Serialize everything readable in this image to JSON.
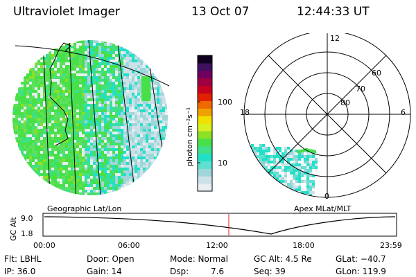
{
  "header": {
    "title": "Ultraviolet Imager",
    "date": "13 Oct 07",
    "time": "12:44:33 UT"
  },
  "colorbar": {
    "label": "photon cm⁻²s⁻¹",
    "ticks": [
      "100",
      "10"
    ],
    "colors": [
      "#e8eef2",
      "#cde2e8",
      "#9fd6da",
      "#5fe0d0",
      "#22e0c8",
      "#3ee08a",
      "#48e048",
      "#8ee024",
      "#d8f020",
      "#f0e000",
      "#f0a000",
      "#f06800",
      "#e02000",
      "#c80020",
      "#a00040",
      "#700060",
      "#401060",
      "#100020"
    ]
  },
  "geographic": {
    "label": "Geographic Lat/Lon"
  },
  "apex": {
    "label": "Apex MLat/MLT",
    "hour_labels": [
      "12",
      "18",
      "6",
      "0"
    ],
    "lat_labels": [
      "60",
      "70",
      "80"
    ]
  },
  "altitude_plot": {
    "ylabel": "GC Alt",
    "yticks": [
      "9.0",
      "1.8"
    ],
    "xticks": [
      "00:00",
      "06:00",
      "12:00",
      "18:00",
      "23:59"
    ]
  },
  "info": {
    "row1": [
      "Flt: LBHL",
      "Door: Open",
      "Mode: Normal",
      "GC Alt: 4.5 Re",
      "GLat: −40.7"
    ],
    "row2": [
      "IP: 36.0",
      "Gain: 14",
      "Dsp:",
      "7.6",
      "Seq: 39",
      "GLon: 119.9"
    ]
  },
  "colors": {
    "marker": "#e01818"
  }
}
